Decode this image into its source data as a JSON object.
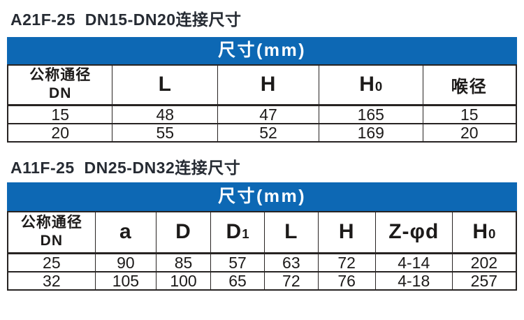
{
  "page": {
    "accent_blue": "#0d68b4",
    "title_color": "#262b33"
  },
  "sections": [
    {
      "title": "A21F-25  DN15-DN20连接尺寸",
      "size_header": "尺寸(mm)",
      "table": {
        "columns": [
          {
            "label": "公称通径\nDN"
          },
          {
            "label": "L"
          },
          {
            "label": "H"
          },
          {
            "label": "H",
            "sub": "0"
          },
          {
            "label": "喉径"
          }
        ],
        "rows": [
          [
            "15",
            "48",
            "47",
            "165",
            "15"
          ],
          [
            "20",
            "55",
            "52",
            "169",
            "20"
          ]
        ]
      }
    },
    {
      "title": "A11F-25  DN25-DN32连接尺寸",
      "size_header": "尺寸(mm)",
      "table": {
        "columns": [
          {
            "label": "公称通径\nDN"
          },
          {
            "label": "a"
          },
          {
            "label": "D"
          },
          {
            "label": "D",
            "sub": "1"
          },
          {
            "label": "L"
          },
          {
            "label": "H"
          },
          {
            "label": "Z-φd"
          },
          {
            "label": "H",
            "sub": "0"
          }
        ],
        "rows": [
          [
            "25",
            "90",
            "85",
            "57",
            "63",
            "72",
            "4-14",
            "202"
          ],
          [
            "32",
            "105",
            "100",
            "65",
            "72",
            "76",
            "4-18",
            "257"
          ]
        ]
      }
    }
  ]
}
